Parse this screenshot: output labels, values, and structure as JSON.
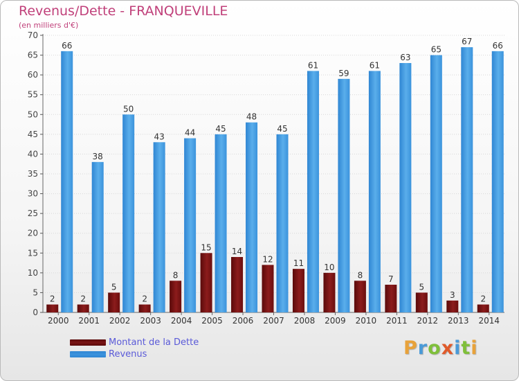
{
  "title": "Revenus/Dette - FRANQUEVILLE",
  "subtitle": "(en milliers d'€)",
  "legend": [
    {
      "label": "Montant de la Dette",
      "color": "#7a1414"
    },
    {
      "label": "Revenus",
      "color": "#3c93dd"
    }
  ],
  "logo": {
    "letters": [
      "P",
      "r",
      "o",
      "x",
      "i",
      "t",
      "i"
    ],
    "colors": [
      "#e8a23a",
      "#4a9ad8",
      "#7fbf3a",
      "#e05a2a",
      "#4a9ad8",
      "#7fbf3a",
      "#e8a23a"
    ]
  },
  "chart_data": {
    "type": "bar",
    "categories": [
      "2000",
      "2001",
      "2002",
      "2003",
      "2004",
      "2005",
      "2006",
      "2007",
      "2008",
      "2009",
      "2010",
      "2011",
      "2012",
      "2013",
      "2014"
    ],
    "series": [
      {
        "name": "Montant de la Dette",
        "values": [
          2,
          2,
          5,
          2,
          8,
          15,
          14,
          12,
          11,
          10,
          8,
          7,
          5,
          3,
          2
        ]
      },
      {
        "name": "Revenus",
        "values": [
          66,
          38,
          50,
          43,
          44,
          45,
          48,
          45,
          61,
          59,
          61,
          63,
          65,
          67,
          66
        ]
      }
    ],
    "ylim": [
      0,
      70
    ],
    "yticks": [
      0,
      5,
      10,
      15,
      20,
      25,
      30,
      35,
      40,
      45,
      50,
      55,
      60,
      65,
      70
    ],
    "grid": true,
    "legend_position": "bottom-left"
  }
}
